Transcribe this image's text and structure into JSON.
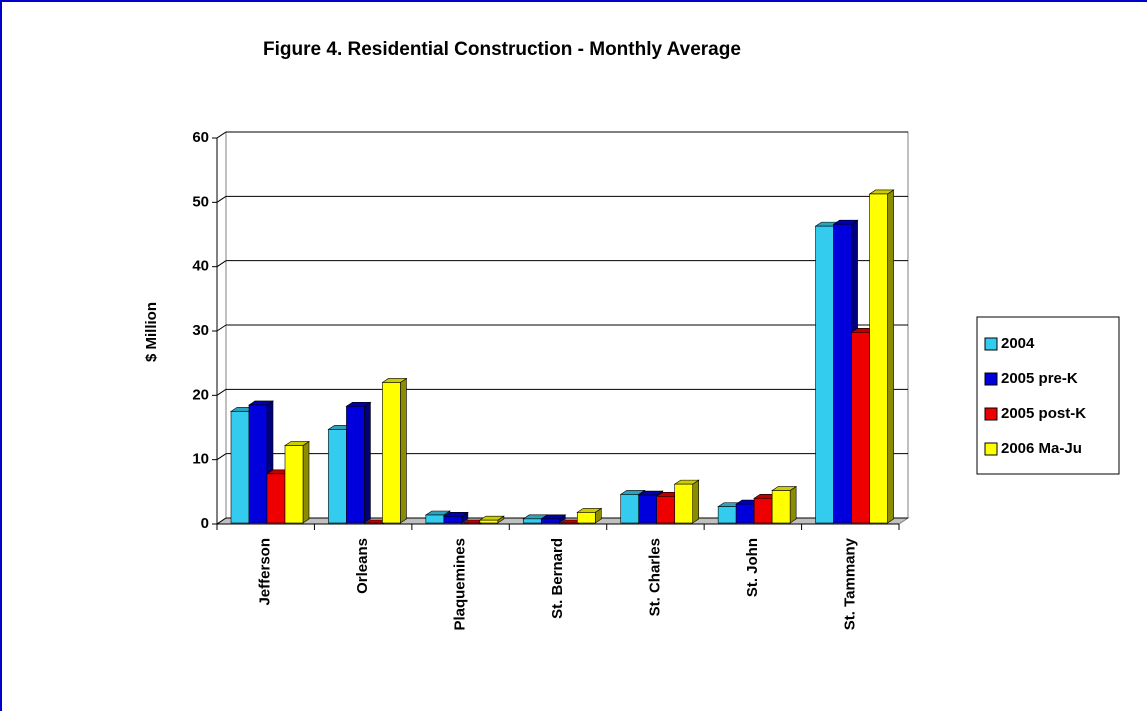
{
  "chart_data": {
    "type": "bar3d",
    "title": "Figure 4. Residential Construction - Monthly Average",
    "y_label": "$ Million",
    "categories": [
      "Jefferson",
      "Orleans",
      "Plaquemines",
      "St. Bernard",
      "St. Charles",
      "St. John",
      "St. Tammany"
    ],
    "series": [
      {
        "name": "2004",
        "color": "#33ccee",
        "values": [
          17.5,
          14.7,
          1.4,
          0.8,
          4.6,
          2.7,
          46.3
        ]
      },
      {
        "name": "2005  pre-K",
        "color": "#0000dd",
        "values": [
          18.5,
          18.3,
          1.2,
          0.8,
          4.5,
          3.1,
          46.6
        ]
      },
      {
        "name": "2005 post-K",
        "color": "#ee0000",
        "values": [
          7.8,
          0,
          0,
          0,
          4.3,
          4.0,
          29.8
        ]
      },
      {
        "name": "2006 Ma-Ju",
        "color": "#ffff00",
        "values": [
          12.2,
          22,
          0.6,
          1.8,
          6.2,
          5.2,
          51.3
        ]
      }
    ],
    "ylim": [
      0,
      60
    ],
    "yticks": [
      0,
      10,
      20,
      30,
      40,
      50,
      60
    ],
    "grid": true,
    "legend": "right"
  }
}
